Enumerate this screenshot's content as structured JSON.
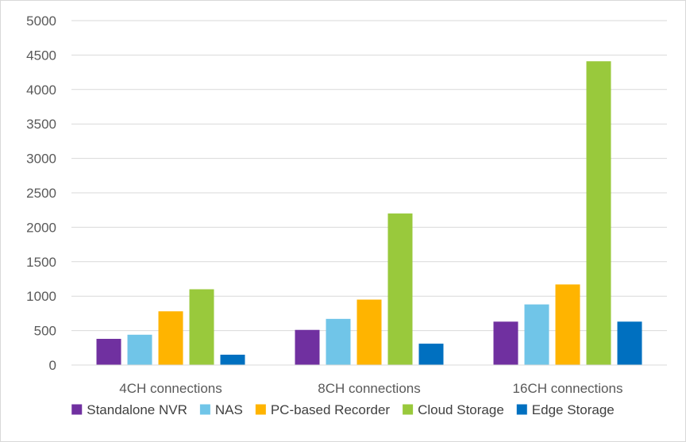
{
  "chart_data": {
    "type": "bar",
    "title": "",
    "xlabel": "",
    "ylabel": "",
    "ylim": [
      0,
      5000
    ],
    "yticks": [
      0,
      500,
      1000,
      1500,
      2000,
      2500,
      3000,
      3500,
      4000,
      4500,
      5000
    ],
    "grid": true,
    "legend_position": "bottom",
    "categories": [
      "4CH connections",
      "8CH connections",
      "16CH connections"
    ],
    "series": [
      {
        "name": "Standalone NVR",
        "color": "#7030a0",
        "values": [
          380,
          510,
          630
        ]
      },
      {
        "name": "NAS",
        "color": "#70c5e8",
        "values": [
          440,
          670,
          880
        ]
      },
      {
        "name": "PC-based Recorder",
        "color": "#ffb400",
        "values": [
          780,
          950,
          1170
        ]
      },
      {
        "name": "Cloud Storage",
        "color": "#99c93c",
        "values": [
          1100,
          2200,
          4410
        ]
      },
      {
        "name": "Edge Storage",
        "color": "#0070c0",
        "values": [
          150,
          310,
          630
        ]
      }
    ]
  }
}
